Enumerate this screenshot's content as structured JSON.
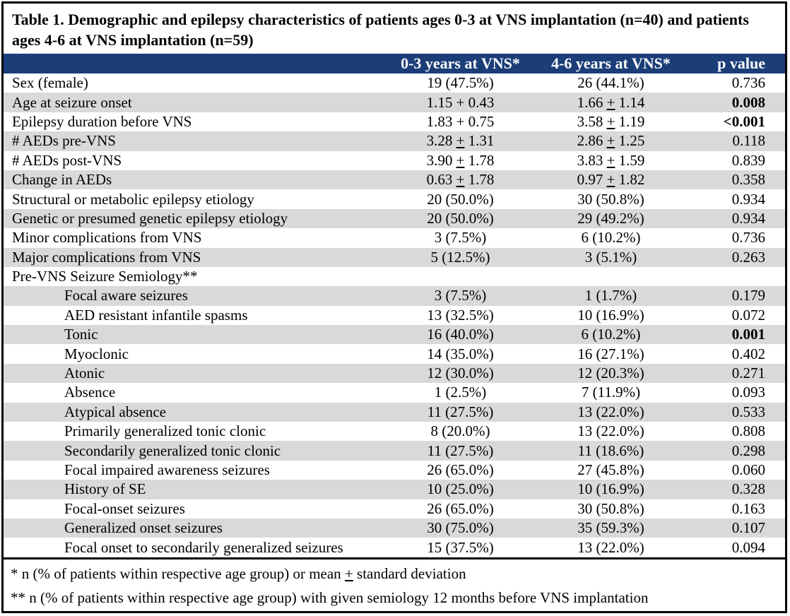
{
  "title": "Table 1. Demographic and epilepsy characteristics of patients ages 0-3 at VNS implantation (n=40) and patients ages 4-6 at VNS implantation (n=59)",
  "colors": {
    "header_bg": "#1B3D78",
    "header_text": "#FFFFFF",
    "stripe": "#D9D9D9",
    "border": "#000000"
  },
  "header": {
    "columns": [
      "",
      "0-3 years at VNS*",
      "4-6 years at VNS*",
      "p value"
    ]
  },
  "rows": [
    {
      "label": "Sex (female)",
      "indent": false,
      "c1": "19 (47.5%)",
      "c2": "26 (44.1%)",
      "p": "0.736",
      "p_bold": false
    },
    {
      "label": "Age at seizure onset",
      "indent": false,
      "c1": "1.15 + 0.43",
      "c2": "1.66 ± 1.14",
      "p": "0.008",
      "p_bold": true
    },
    {
      "label": "Epilepsy duration before VNS",
      "indent": false,
      "c1": "1.83 + 0.75",
      "c2": "3.58 ± 1.19",
      "p": "<0.001",
      "p_bold": true
    },
    {
      "label": "# AEDs pre-VNS",
      "indent": false,
      "c1": "3.28 ± 1.31",
      "c2": "2.86 ± 1.25",
      "p": "0.118",
      "p_bold": false
    },
    {
      "label": "# AEDs post-VNS",
      "indent": false,
      "c1": "3.90 ± 1.78",
      "c2": "3.83 ± 1.59",
      "p": "0.839",
      "p_bold": false
    },
    {
      "label": "Change in AEDs",
      "indent": false,
      "c1": "0.63 ± 1.78",
      "c2": "0.97 ± 1.82",
      "p": "0.358",
      "p_bold": false
    },
    {
      "label": "Structural or metabolic epilepsy etiology",
      "indent": false,
      "c1": "20 (50.0%)",
      "c2": "30 (50.8%)",
      "p": "0.934",
      "p_bold": false
    },
    {
      "label": "Genetic or presumed genetic epilepsy etiology",
      "indent": false,
      "c1": "20 (50.0%)",
      "c2": "29 (49.2%)",
      "p": "0.934",
      "p_bold": false
    },
    {
      "label": "Minor complications from VNS",
      "indent": false,
      "c1": "3 (7.5%)",
      "c2": "6 (10.2%)",
      "p": "0.736",
      "p_bold": false
    },
    {
      "label": "Major complications from VNS",
      "indent": false,
      "c1": "5 (12.5%)",
      "c2": "3 (5.1%)",
      "p": "0.263",
      "p_bold": false
    },
    {
      "label": "Pre-VNS Seizure Semiology**",
      "indent": false,
      "c1": "",
      "c2": "",
      "p": "",
      "p_bold": false
    },
    {
      "label": "Focal aware seizures",
      "indent": true,
      "c1": "3 (7.5%)",
      "c2": "1 (1.7%)",
      "p": "0.179",
      "p_bold": false
    },
    {
      "label": "AED resistant infantile spasms",
      "indent": true,
      "c1": "13 (32.5%)",
      "c2": "10 (16.9%)",
      "p": "0.072",
      "p_bold": false
    },
    {
      "label": "Tonic",
      "indent": true,
      "c1": "16 (40.0%)",
      "c2": "6 (10.2%)",
      "p": "0.001",
      "p_bold": true
    },
    {
      "label": "Myoclonic",
      "indent": true,
      "c1": "14 (35.0%)",
      "c2": "16 (27.1%)",
      "p": "0.402",
      "p_bold": false
    },
    {
      "label": "Atonic",
      "indent": true,
      "c1": "12 (30.0%)",
      "c2": "12 (20.3%)",
      "p": "0.271",
      "p_bold": false
    },
    {
      "label": "Absence",
      "indent": true,
      "c1": "1 (2.5%)",
      "c2": "7 (11.9%)",
      "p": "0.093",
      "p_bold": false
    },
    {
      "label": "Atypical absence",
      "indent": true,
      "c1": "11 (27.5%)",
      "c2": "13 (22.0%)",
      "p": "0.533",
      "p_bold": false
    },
    {
      "label": "Primarily generalized tonic clonic",
      "indent": true,
      "c1": "8 (20.0%)",
      "c2": "13 (22.0%)",
      "p": "0.808",
      "p_bold": false
    },
    {
      "label": "Secondarily generalized tonic clonic",
      "indent": true,
      "c1": "11 (27.5%)",
      "c2": "11 (18.6%)",
      "p": "0.298",
      "p_bold": false
    },
    {
      "label": "Focal impaired awareness seizures",
      "indent": true,
      "c1": "26 (65.0%)",
      "c2": "27 (45.8%)",
      "p": "0.060",
      "p_bold": false
    },
    {
      "label": "History of SE",
      "indent": true,
      "c1": "10 (25.0%)",
      "c2": "10 (16.9%)",
      "p": "0.328",
      "p_bold": false
    },
    {
      "label": "Focal-onset seizures",
      "indent": true,
      "c1": "26 (65.0%)",
      "c2": "30 (50.8%)",
      "p": "0.163",
      "p_bold": false
    },
    {
      "label": "Generalized onset seizures",
      "indent": true,
      "c1": "30 (75.0%)",
      "c2": "35 (59.3%)",
      "p": "0.107",
      "p_bold": false
    },
    {
      "label": "Focal onset to secondarily generalized seizures",
      "indent": true,
      "c1": "15 (37.5%)",
      "c2": "13 (22.0%)",
      "p": "0.094",
      "p_bold": false
    }
  ],
  "footnotes": [
    "* n (% of patients within respective age group) or mean ± standard deviation",
    "** n (% of patients within respective age group) with given semiology 12 months before VNS implantation"
  ]
}
